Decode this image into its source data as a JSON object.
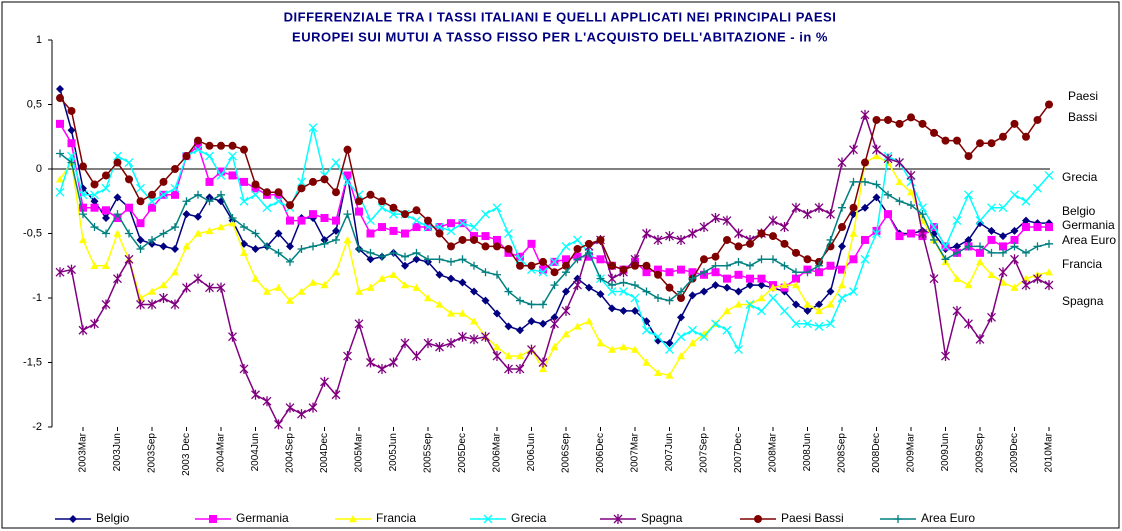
{
  "chart_data": {
    "type": "line",
    "title": [
      "DIFFERENZIALE TRA I TASSI ITALIANI E QUELLI APPLICATI NEI PRINCIPALI PAESI",
      "EUROPEI SUI MUTUI A TASSO FISSO PER L'ACQUISTO DELL'ABITAZIONE - in %"
    ],
    "categories": [
      null,
      null,
      "2003Mar",
      null,
      null,
      "2003Jun",
      null,
      null,
      "2003Sep",
      null,
      null,
      "2003 Dec",
      null,
      null,
      "2004Mar",
      null,
      null,
      "2004Jun",
      null,
      null,
      "2004Sep",
      null,
      null,
      "2004Dec",
      null,
      null,
      "2005Mar",
      null,
      null,
      "2005Jun",
      null,
      null,
      "2005Sep",
      null,
      null,
      "2005Dec",
      null,
      null,
      "2006Mar",
      null,
      null,
      "2006Jun",
      null,
      null,
      "2006Sep",
      null,
      null,
      "2006Dec",
      null,
      null,
      "2007Mar",
      null,
      null,
      "2007Jun",
      null,
      null,
      "2007Sep",
      null,
      null,
      "2007Dec",
      null,
      null,
      "2008Mar",
      null,
      null,
      "2008Jun",
      null,
      null,
      "2008Sep",
      null,
      null,
      "2008Dec",
      null,
      null,
      "2009Mar",
      null,
      null,
      "2009Jun",
      null,
      null,
      "2009Sep",
      null,
      null,
      "2009Dec",
      null,
      null,
      "2010Mar"
    ],
    "ylim": [
      -2,
      1
    ],
    "yticks": [
      {
        "value": -2,
        "label": "-2"
      },
      {
        "value": -1.5,
        "label": "-1,5"
      },
      {
        "value": -1,
        "label": "-1"
      },
      {
        "value": -0.5,
        "label": "-0,5"
      },
      {
        "value": 0,
        "label": "0"
      },
      {
        "value": 0.5,
        "label": "0,5"
      },
      {
        "value": 1,
        "label": "1"
      }
    ],
    "legend": "bottom",
    "series": [
      {
        "name": "Belgio",
        "color": "#000080",
        "marker": "diamond",
        "values": [
          0.62,
          0.3,
          -0.15,
          -0.25,
          -0.38,
          -0.22,
          -0.3,
          -0.55,
          -0.58,
          -0.6,
          -0.62,
          -0.35,
          -0.37,
          -0.22,
          -0.25,
          -0.4,
          -0.58,
          -0.62,
          -0.6,
          -0.5,
          -0.6,
          -0.38,
          -0.38,
          -0.55,
          -0.48,
          -0.05,
          -0.62,
          -0.7,
          -0.68,
          -0.65,
          -0.75,
          -0.7,
          -0.72,
          -0.82,
          -0.85,
          -0.88,
          -0.95,
          -1.02,
          -1.12,
          -1.22,
          -1.25,
          -1.18,
          -1.2,
          -1.15,
          -0.95,
          -0.85,
          -0.92,
          -0.97,
          -1.08,
          -1.1,
          -1.1,
          -1.18,
          -1.33,
          -1.35,
          -1.15,
          -0.98,
          -0.95,
          -0.9,
          -0.92,
          -0.95,
          -0.9,
          -0.9,
          -0.92,
          -0.95,
          -1.05,
          -1.1,
          -1.05,
          -0.95,
          -0.6,
          -0.35,
          -0.3,
          -0.22,
          -0.35,
          -0.5,
          -0.5,
          -0.48,
          -0.5,
          -0.62,
          -0.6,
          -0.55,
          -0.42,
          -0.48,
          -0.52,
          -0.48,
          -0.4,
          -0.42,
          -0.42
        ]
      },
      {
        "name": "Germania",
        "color": "#ff00ff",
        "marker": "square",
        "values": [
          0.35,
          0.2,
          -0.3,
          -0.3,
          -0.32,
          -0.38,
          -0.3,
          -0.42,
          -0.3,
          -0.2,
          -0.2,
          0.1,
          0.18,
          -0.1,
          -0.02,
          -0.05,
          -0.1,
          -0.15,
          -0.2,
          -0.2,
          -0.4,
          -0.4,
          -0.35,
          -0.38,
          -0.4,
          -0.05,
          -0.33,
          -0.5,
          -0.45,
          -0.48,
          -0.5,
          -0.45,
          -0.45,
          -0.45,
          -0.42,
          -0.42,
          -0.52,
          -0.52,
          -0.55,
          -0.65,
          -0.68,
          -0.58,
          -0.78,
          -0.72,
          -0.7,
          -0.68,
          -0.68,
          -0.7,
          -0.75,
          -0.78,
          -0.72,
          -0.8,
          -0.78,
          -0.8,
          -0.78,
          -0.8,
          -0.82,
          -0.8,
          -0.85,
          -0.82,
          -0.85,
          -0.85,
          -0.9,
          -0.92,
          -0.85,
          -0.78,
          -0.8,
          -0.75,
          -0.78,
          -0.7,
          -0.55,
          -0.48,
          -0.35,
          -0.52,
          -0.5,
          -0.52,
          -0.45,
          -0.6,
          -0.65,
          -0.6,
          -0.65,
          -0.55,
          -0.6,
          -0.55,
          -0.45,
          -0.45,
          -0.45
        ]
      },
      {
        "name": "Francia",
        "color": "#ffff00",
        "marker": "triangle",
        "values": [
          -0.08,
          0.05,
          -0.55,
          -0.75,
          -0.75,
          -0.5,
          -0.7,
          -1,
          -0.95,
          -0.9,
          -0.8,
          -0.6,
          -0.5,
          -0.48,
          -0.45,
          -0.42,
          -0.65,
          -0.85,
          -0.95,
          -0.92,
          -1.02,
          -0.95,
          -0.88,
          -0.9,
          -0.8,
          -0.55,
          -0.95,
          -0.92,
          -0.85,
          -0.82,
          -0.9,
          -0.92,
          -1,
          -1.05,
          -1.12,
          -1.12,
          -1.18,
          -1.3,
          -1.38,
          -1.45,
          -1.45,
          -1.4,
          -1.55,
          -1.38,
          -1.28,
          -1.22,
          -1.18,
          -1.35,
          -1.4,
          -1.38,
          -1.4,
          -1.5,
          -1.58,
          -1.6,
          -1.45,
          -1.35,
          -1.28,
          -1.2,
          -1.1,
          -1.05,
          -1.05,
          -1,
          -0.92,
          -0.9,
          -0.9,
          -1.05,
          -1.1,
          -1.05,
          -0.9,
          -0.5,
          0.05,
          0.1,
          0.05,
          -0.1,
          -0.18,
          -0.4,
          -0.55,
          -0.72,
          -0.85,
          -0.9,
          -0.72,
          -0.82,
          -0.88,
          -0.92,
          -0.85,
          -0.82,
          -0.8
        ]
      },
      {
        "name": "Grecia",
        "color": "#00ffff",
        "marker": "x",
        "values": [
          -0.18,
          0.1,
          -0.2,
          -0.2,
          -0.15,
          0.1,
          0.05,
          -0.15,
          -0.25,
          -0.2,
          -0.15,
          0.1,
          0.15,
          0.1,
          -0.05,
          0.1,
          -0.25,
          -0.2,
          -0.3,
          -0.25,
          -0.3,
          -0.1,
          0.32,
          -0.05,
          0.05,
          -0.1,
          -0.2,
          -0.4,
          -0.3,
          -0.35,
          -0.35,
          -0.4,
          -0.45,
          -0.45,
          -0.48,
          -0.42,
          -0.45,
          -0.35,
          -0.3,
          -0.5,
          -0.7,
          -0.78,
          -0.8,
          -0.72,
          -0.6,
          -0.55,
          -0.65,
          -0.85,
          -0.95,
          -0.95,
          -1,
          -1.25,
          -1.3,
          -1.4,
          -1.3,
          -1.25,
          -1.3,
          -1.2,
          -1.25,
          -1.4,
          -1.05,
          -1.1,
          -1,
          -1.1,
          -1.2,
          -1.2,
          -1.22,
          -1.2,
          -1,
          -0.95,
          -0.7,
          -0.5,
          0.1,
          0.05,
          -0.1,
          -0.3,
          -0.45,
          -0.6,
          -0.4,
          -0.2,
          -0.4,
          -0.3,
          -0.3,
          -0.2,
          -0.25,
          -0.15,
          -0.05
        ]
      },
      {
        "name": "Spagna",
        "color": "#800080",
        "marker": "star",
        "values": [
          -0.8,
          -0.78,
          -1.25,
          -1.2,
          -1.05,
          -0.85,
          -0.7,
          -1.05,
          -1.05,
          -1,
          -1.05,
          -0.92,
          -0.85,
          -0.92,
          -0.92,
          -1.3,
          -1.55,
          -1.75,
          -1.8,
          -1.98,
          -1.85,
          -1.9,
          -1.85,
          -1.65,
          -1.75,
          -1.45,
          -1.2,
          -1.5,
          -1.55,
          -1.5,
          -1.35,
          -1.45,
          -1.35,
          -1.38,
          -1.35,
          -1.3,
          -1.32,
          -1.3,
          -1.45,
          -1.55,
          -1.55,
          -1.4,
          -1.5,
          -1.2,
          -1.1,
          -0.9,
          -0.6,
          -0.55,
          -0.85,
          -0.8,
          -0.7,
          -0.5,
          -0.55,
          -0.52,
          -0.55,
          -0.5,
          -0.45,
          -0.38,
          -0.4,
          -0.5,
          -0.55,
          -0.5,
          -0.4,
          -0.45,
          -0.3,
          -0.35,
          -0.3,
          -0.35,
          0.05,
          0.15,
          0.42,
          0.15,
          0.08,
          0.05,
          -0.05,
          -0.5,
          -0.85,
          -1.45,
          -1.1,
          -1.2,
          -1.32,
          -1.15,
          -0.8,
          -0.7,
          -0.9,
          -0.85,
          -0.9
        ]
      },
      {
        "name": "Paesi Bassi",
        "color": "#800000",
        "marker": "circle",
        "values": [
          0.55,
          0.45,
          0.02,
          -0.12,
          -0.05,
          0.05,
          -0.08,
          -0.25,
          -0.2,
          -0.1,
          0,
          0.1,
          0.22,
          0.18,
          0.18,
          0.18,
          0.15,
          -0.12,
          -0.18,
          -0.18,
          -0.28,
          -0.15,
          -0.1,
          -0.08,
          -0.18,
          0.15,
          -0.25,
          -0.2,
          -0.25,
          -0.3,
          -0.35,
          -0.32,
          -0.4,
          -0.5,
          -0.6,
          -0.55,
          -0.55,
          -0.6,
          -0.6,
          -0.62,
          -0.75,
          -0.75,
          -0.72,
          -0.8,
          -0.75,
          -0.62,
          -0.58,
          -0.55,
          -0.75,
          -0.78,
          -0.75,
          -0.75,
          -0.82,
          -0.92,
          -1,
          -0.85,
          -0.7,
          -0.68,
          -0.55,
          -0.6,
          -0.58,
          -0.5,
          -0.52,
          -0.58,
          -0.65,
          -0.7,
          -0.72,
          -0.6,
          -0.45,
          -0.3,
          0.05,
          0.38,
          0.38,
          0.35,
          0.4,
          0.35,
          0.28,
          0.22,
          0.22,
          0.1,
          0.2,
          0.2,
          0.25,
          0.35,
          0.25,
          0.38,
          0.5
        ]
      },
      {
        "name": "Area Euro",
        "color": "#008080",
        "marker": "plus",
        "values": [
          0.12,
          0.05,
          -0.35,
          -0.45,
          -0.5,
          -0.35,
          -0.5,
          -0.62,
          -0.55,
          -0.5,
          -0.45,
          -0.25,
          -0.2,
          -0.25,
          -0.2,
          -0.38,
          -0.45,
          -0.5,
          -0.6,
          -0.65,
          -0.72,
          -0.62,
          -0.6,
          -0.58,
          -0.55,
          -0.35,
          -0.62,
          -0.65,
          -0.68,
          -0.65,
          -0.68,
          -0.65,
          -0.7,
          -0.7,
          -0.72,
          -0.7,
          -0.75,
          -0.8,
          -0.82,
          -0.95,
          -1.02,
          -1.05,
          -1.05,
          -0.9,
          -0.8,
          -0.7,
          -0.65,
          -0.85,
          -0.9,
          -0.88,
          -0.9,
          -0.95,
          -1,
          -1.02,
          -0.95,
          -0.85,
          -0.8,
          -0.75,
          -0.75,
          -0.72,
          -0.75,
          -0.7,
          -0.7,
          -0.75,
          -0.8,
          -0.8,
          -0.75,
          -0.55,
          -0.3,
          -0.1,
          -0.1,
          -0.12,
          -0.2,
          -0.25,
          -0.28,
          -0.35,
          -0.55,
          -0.7,
          -0.65,
          -0.6,
          -0.6,
          -0.65,
          -0.65,
          -0.6,
          -0.65,
          -0.6,
          -0.58
        ]
      }
    ]
  }
}
